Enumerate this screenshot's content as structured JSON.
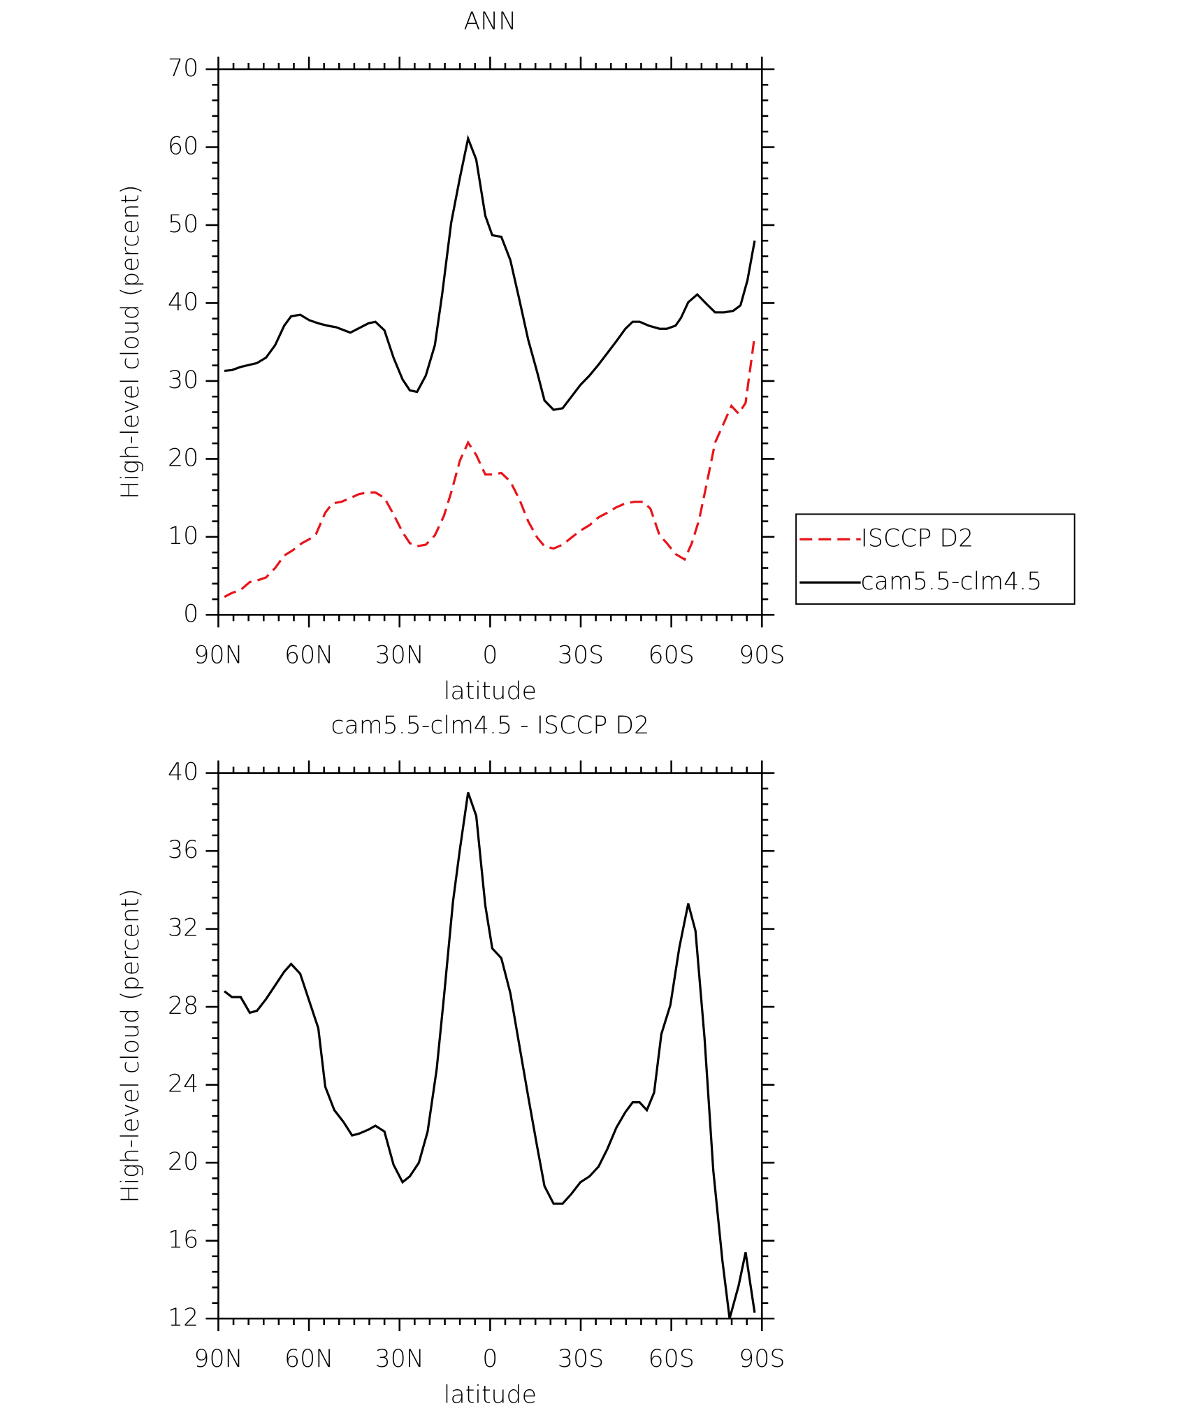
{
  "chart_data": [
    {
      "type": "line",
      "title": "ANN",
      "xlabel": "latitude",
      "ylabel": "High-level cloud (percent)",
      "xlim": [
        90,
        -90
      ],
      "xticks": [
        {
          "value": 90,
          "label": "90N"
        },
        {
          "value": 60,
          "label": "60N"
        },
        {
          "value": 30,
          "label": "30N"
        },
        0,
        {
          "value": -30,
          "label": "30S"
        },
        {
          "value": -60,
          "label": "60S"
        },
        {
          "value": -90,
          "label": "90S"
        }
      ],
      "ylim": [
        0,
        70
      ],
      "yticks": [
        0,
        10,
        20,
        30,
        40,
        50,
        60,
        70
      ],
      "legend": "right",
      "series": [
        {
          "name": "ISCCP D2",
          "color": "#e8141a",
          "line_style": "dashed",
          "x": [
            88,
            85.5,
            82.6,
            79.6,
            77.2,
            74.2,
            71.2,
            68.2,
            65.3,
            62.3,
            59.9,
            57.6,
            54.6,
            52.2,
            49.2,
            46.3,
            43.3,
            40.3,
            38,
            35,
            32,
            29,
            26.6,
            24.2,
            21.3,
            18.3,
            15.3,
            12.9,
            10,
            7.3,
            4.6,
            1.6,
            -0.7,
            -3.7,
            -6.7,
            -9.7,
            -12.6,
            -15.6,
            -18,
            -21,
            -24,
            -26.9,
            -29.9,
            -32.9,
            -35.9,
            -38.8,
            -41.8,
            -44.8,
            -47.8,
            -50.7,
            -53.1,
            -56.1,
            -58.5,
            -61.4,
            -64.4,
            -66.8,
            -69.2,
            -71.6,
            -74.5,
            -77.5,
            -79.9,
            -82.3,
            -84.6,
            -87.6
          ],
          "values": [
            2.3,
            2.8,
            3.2,
            4.2,
            4.4,
            4.8,
            6.0,
            7.6,
            8.3,
            9.2,
            9.7,
            10.4,
            13.1,
            14.3,
            14.5,
            15.0,
            15.5,
            15.7,
            15.7,
            15.0,
            12.9,
            10.6,
            9.2,
            8.8,
            9.0,
            10.2,
            12.7,
            15.7,
            19.8,
            22.1,
            20.5,
            18.0,
            18.0,
            18.2,
            17.1,
            14.8,
            12.0,
            9.9,
            8.8,
            8.5,
            9.0,
            9.9,
            10.8,
            11.5,
            12.5,
            13.1,
            13.8,
            14.3,
            14.5,
            14.5,
            13.6,
            10.2,
            9.2,
            7.8,
            7.1,
            9.2,
            12.2,
            16.6,
            22.1,
            24.7,
            26.8,
            25.8,
            27.2,
            35.8
          ]
        },
        {
          "name": "cam5.5-clm4.5",
          "color": "#000000",
          "line_style": "solid",
          "x": [
            88,
            85.5,
            82.6,
            77.2,
            74.2,
            71.2,
            68.2,
            65.9,
            62.9,
            59.9,
            56.9,
            53.9,
            51,
            46.3,
            40.3,
            38,
            35,
            32,
            29,
            26.6,
            24.2,
            21.3,
            18.3,
            15.9,
            12.9,
            10,
            7.3,
            4.6,
            1.6,
            -0.7,
            -3.7,
            -6.7,
            -9.7,
            -12.6,
            -15.6,
            -18,
            -21,
            -24,
            -29.9,
            -32.9,
            -35.9,
            -41.8,
            -44.8,
            -47.2,
            -49.5,
            -52.5,
            -56.1,
            -58.5,
            -61.4,
            -63.2,
            -65.6,
            -68.6,
            -71.6,
            -74.5,
            -77.5,
            -80.5,
            -82.9,
            -85.2,
            -87.6
          ],
          "values": [
            31.3,
            31.4,
            31.8,
            32.3,
            33.0,
            34.6,
            37.1,
            38.3,
            38.5,
            37.8,
            37.4,
            37.1,
            36.9,
            36.2,
            37.4,
            37.6,
            36.5,
            33.0,
            30.2,
            28.8,
            28.6,
            30.7,
            34.6,
            41.1,
            50.3,
            56.1,
            61.1,
            58.4,
            51.2,
            48.7,
            48.5,
            45.5,
            40.4,
            35.3,
            31.1,
            27.5,
            26.3,
            26.5,
            29.5,
            30.7,
            32.1,
            35.1,
            36.7,
            37.6,
            37.6,
            37.1,
            36.7,
            36.7,
            37.1,
            38.1,
            40.1,
            41.1,
            39.9,
            38.8,
            38.8,
            39.0,
            39.7,
            42.9,
            48.0
          ]
        }
      ]
    },
    {
      "type": "line",
      "title": "cam5.5-clm4.5 - ISCCP D2",
      "xlabel": "latitude",
      "ylabel": "High-level cloud (percent)",
      "xlim": [
        90,
        -90
      ],
      "xticks": [
        {
          "value": 90,
          "label": "90N"
        },
        {
          "value": 60,
          "label": "60N"
        },
        {
          "value": 30,
          "label": "30N"
        },
        0,
        {
          "value": -30,
          "label": "30S"
        },
        {
          "value": -60,
          "label": "60S"
        },
        {
          "value": -90,
          "label": "90S"
        }
      ],
      "ylim": [
        12,
        40
      ],
      "yticks": [
        12,
        16,
        20,
        24,
        28,
        32,
        36,
        40
      ],
      "series": [
        {
          "color": "#000000",
          "line_style": "solid",
          "x": [
            88,
            85.5,
            82.6,
            79.6,
            77.2,
            74.2,
            71.2,
            68.2,
            65.9,
            62.9,
            59.9,
            56.9,
            54.6,
            51.6,
            48.6,
            45.7,
            43.3,
            40.3,
            38,
            35,
            32,
            29,
            26.6,
            23.6,
            20.7,
            17.7,
            15.3,
            12.3,
            10,
            7.3,
            4.6,
            1.6,
            -0.7,
            -3.7,
            -6.7,
            -9.7,
            -12.6,
            -15.6,
            -18,
            -21,
            -24,
            -26.9,
            -29.9,
            -32.9,
            -35.9,
            -38.8,
            -41.8,
            -44.8,
            -47.2,
            -49.5,
            -51.9,
            -54.3,
            -56.7,
            -59.7,
            -62.6,
            -65.6,
            -68,
            -71,
            -73.9,
            -76.9,
            -79.3,
            -82.3,
            -84.6,
            -87.6
          ],
          "values": [
            28.8,
            28.5,
            28.5,
            27.7,
            27.8,
            28.4,
            29.1,
            29.8,
            30.2,
            29.7,
            28.3,
            26.9,
            23.9,
            22.7,
            22.1,
            21.4,
            21.5,
            21.7,
            21.9,
            21.6,
            19.9,
            19.0,
            19.3,
            20.0,
            21.6,
            24.8,
            28.5,
            33.4,
            36.1,
            39.0,
            37.8,
            33.2,
            31.0,
            30.5,
            28.7,
            26.0,
            23.4,
            20.8,
            18.8,
            17.9,
            17.9,
            18.4,
            19.0,
            19.3,
            19.8,
            20.7,
            21.8,
            22.6,
            23.1,
            23.1,
            22.7,
            23.6,
            26.6,
            28.1,
            31.0,
            33.3,
            31.9,
            26.4,
            19.6,
            15.0,
            12.0,
            13.7,
            15.4,
            12.3
          ]
        }
      ]
    }
  ]
}
